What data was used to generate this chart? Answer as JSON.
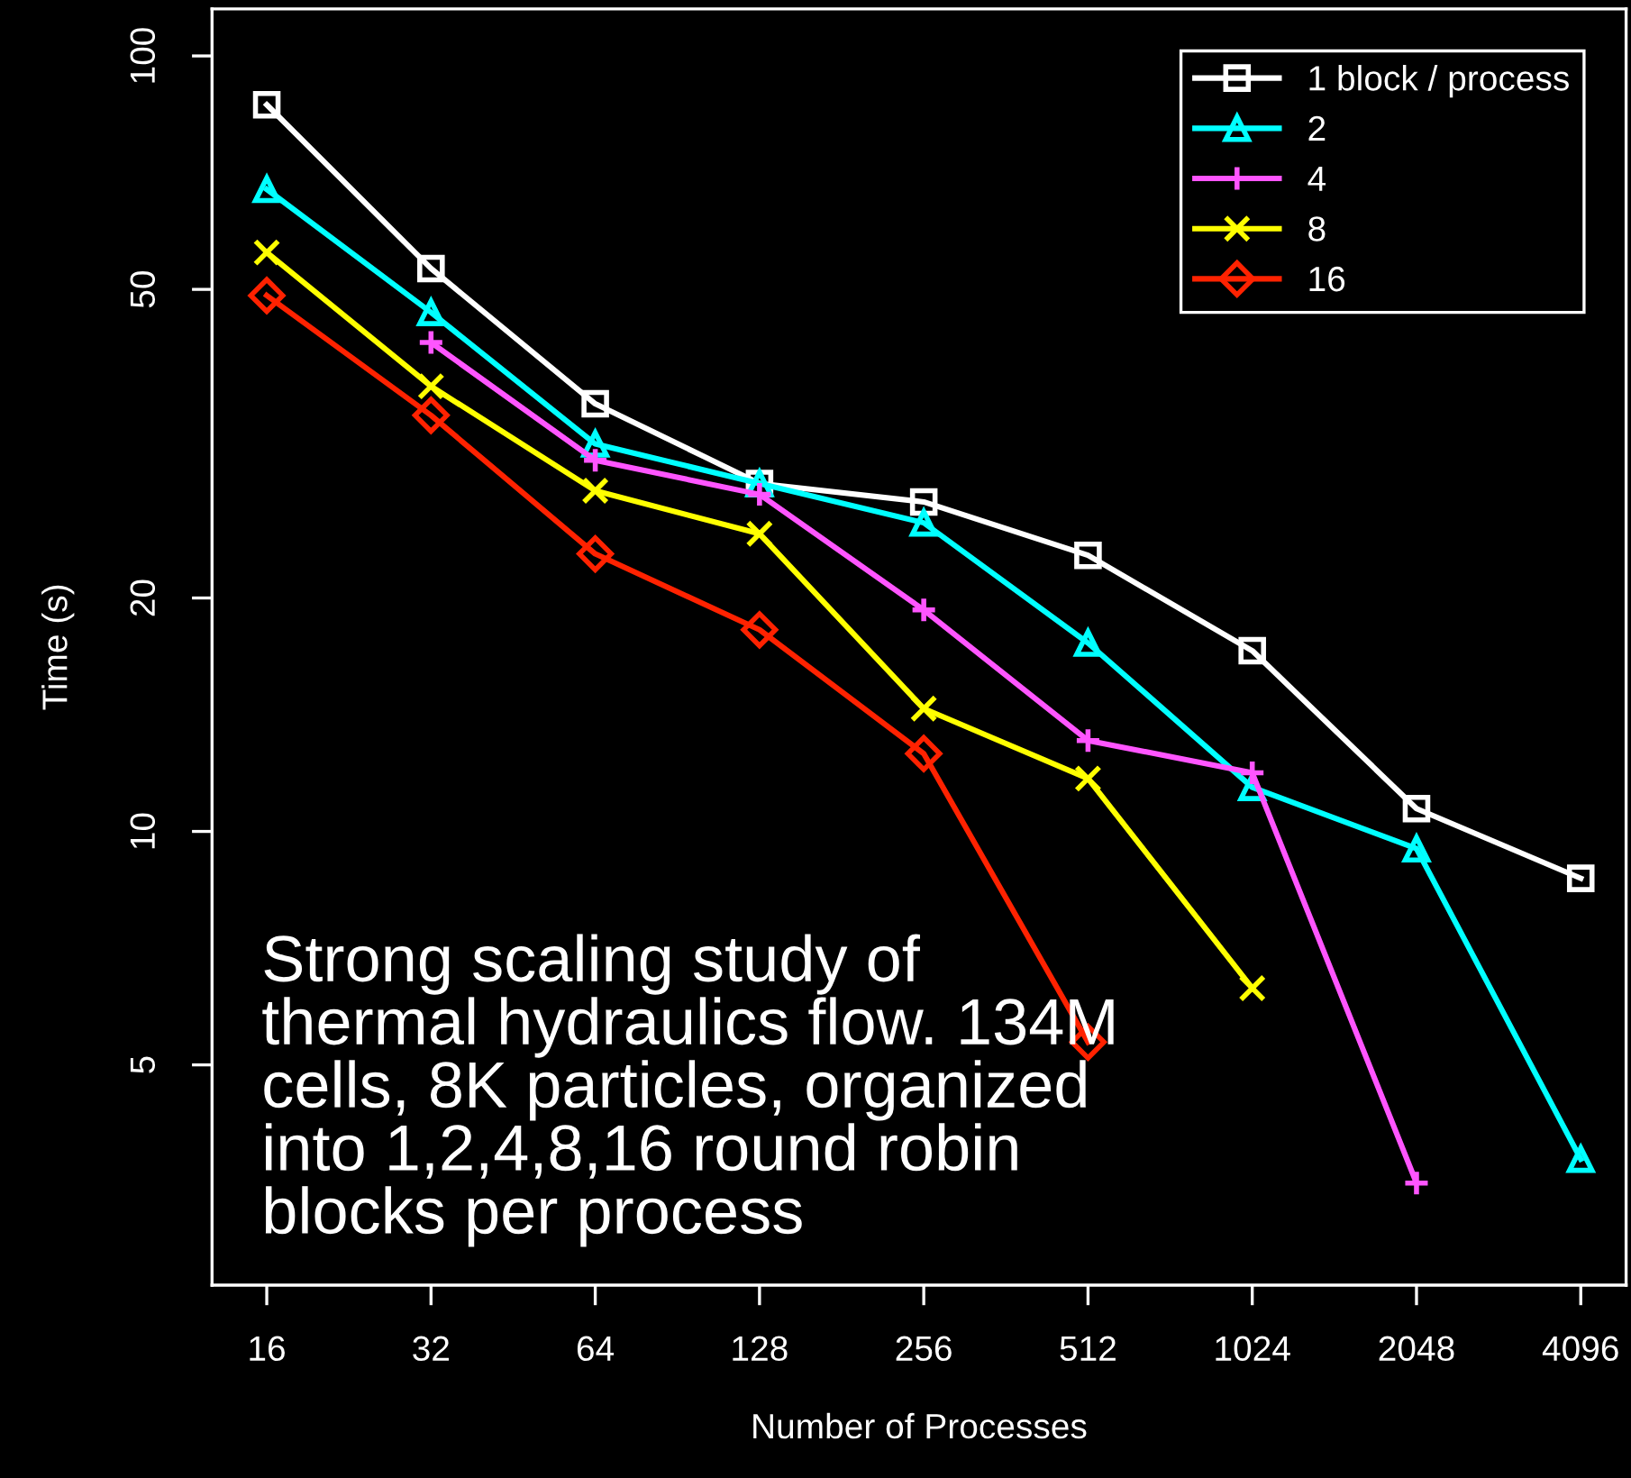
{
  "chart_data": {
    "type": "line",
    "xlabel": "Number of Processes",
    "ylabel": "Time (s)",
    "log": "xy",
    "x": [
      16,
      32,
      64,
      128,
      256,
      512,
      1024,
      2048,
      4096
    ],
    "xlim": [
      12.7,
      4960
    ],
    "xticks": [
      16,
      32,
      64,
      128,
      256,
      512,
      1024,
      2048,
      4096
    ],
    "ylim": [
      2.6,
      115
    ],
    "yticks": [
      5,
      10,
      20,
      50,
      100
    ],
    "grid": false,
    "legend": "top right",
    "series": [
      {
        "name": "1 block / process",
        "color": "#ffffff",
        "marker": "square",
        "values": [
          86.5,
          53.2,
          35.6,
          28.1,
          26.6,
          22.7,
          17.1,
          10.7,
          8.7
        ]
      },
      {
        "name": "2",
        "color": "#00ffff",
        "marker": "triangle",
        "values": [
          67.3,
          46.7,
          31.6,
          28.1,
          25.0,
          17.5,
          11.4,
          9.5,
          3.78
        ]
      },
      {
        "name": "4",
        "color": "#ff55ff",
        "marker": "plus",
        "values": [
          null,
          42.7,
          30.1,
          27.2,
          19.3,
          13.1,
          11.9,
          3.52,
          null
        ]
      },
      {
        "name": "8",
        "color": "#ffff00",
        "marker": "cross",
        "values": [
          55.8,
          37.5,
          27.5,
          24.2,
          14.4,
          11.7,
          6.28,
          null,
          null
        ]
      },
      {
        "name": "16",
        "color": "#ff2200",
        "marker": "diamond",
        "values": [
          49.1,
          34.4,
          22.8,
          18.2,
          12.6,
          5.35,
          null,
          null,
          null
        ]
      }
    ],
    "annotations": [
      "Strong scaling study of\nthermal hydraulics flow. 134M\ncells, 8K particles, organized\ninto 1,2,4,8,16 round robin\nblocks per process"
    ]
  }
}
